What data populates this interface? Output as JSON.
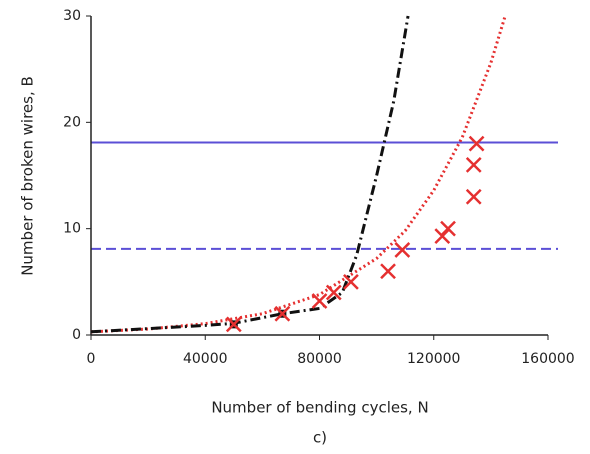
{
  "chart_data": {
    "type": "line",
    "xlabel": "Number of bending cycles, N",
    "ylabel": "Number of broken wires, B",
    "caption": "c)",
    "xlim": [
      0,
      160000
    ],
    "ylim": [
      0,
      30
    ],
    "xticks": [
      0,
      40000,
      80000,
      120000,
      160000
    ],
    "yticks": [
      0,
      10,
      20,
      30
    ],
    "hlines": [
      {
        "value": 18.1,
        "color": "#5b4fd6",
        "dash": "solid"
      },
      {
        "value": 8.1,
        "color": "#5b4fd6",
        "dash": "dashed"
      }
    ],
    "series": [
      {
        "type": "line",
        "color": "#e53030",
        "dash": "dotted",
        "x": [
          0,
          20000,
          40000,
          60000,
          80000,
          100000,
          110000,
          120000,
          130000,
          140000,
          145000
        ],
        "values": [
          0.3,
          0.56,
          1.07,
          2.0,
          3.8,
          7.2,
          9.8,
          13.6,
          18.6,
          25.6,
          30
        ]
      },
      {
        "type": "line",
        "color": "#111111",
        "dash": "dashdot",
        "x": [
          0,
          20000,
          40000,
          50000,
          67000,
          80000,
          88000,
          93000,
          100000,
          106000,
          111000
        ],
        "values": [
          0.3,
          0.6,
          0.9,
          1.1,
          2,
          2.5,
          4,
          7.5,
          15,
          22,
          30
        ]
      },
      {
        "type": "scatter",
        "marker": "square",
        "color": "#111111",
        "x": [
          50000,
          67000
        ],
        "values": [
          1,
          2
        ]
      },
      {
        "type": "scatter",
        "marker": "x",
        "color": "#e53030",
        "x": [
          50000,
          67000,
          80000,
          85000,
          91000,
          104000,
          109000,
          123000,
          125000,
          134000,
          134000,
          135000
        ],
        "values": [
          1,
          2,
          3.2,
          4,
          5,
          6,
          8,
          9.3,
          10,
          13,
          16,
          18
        ]
      }
    ]
  }
}
